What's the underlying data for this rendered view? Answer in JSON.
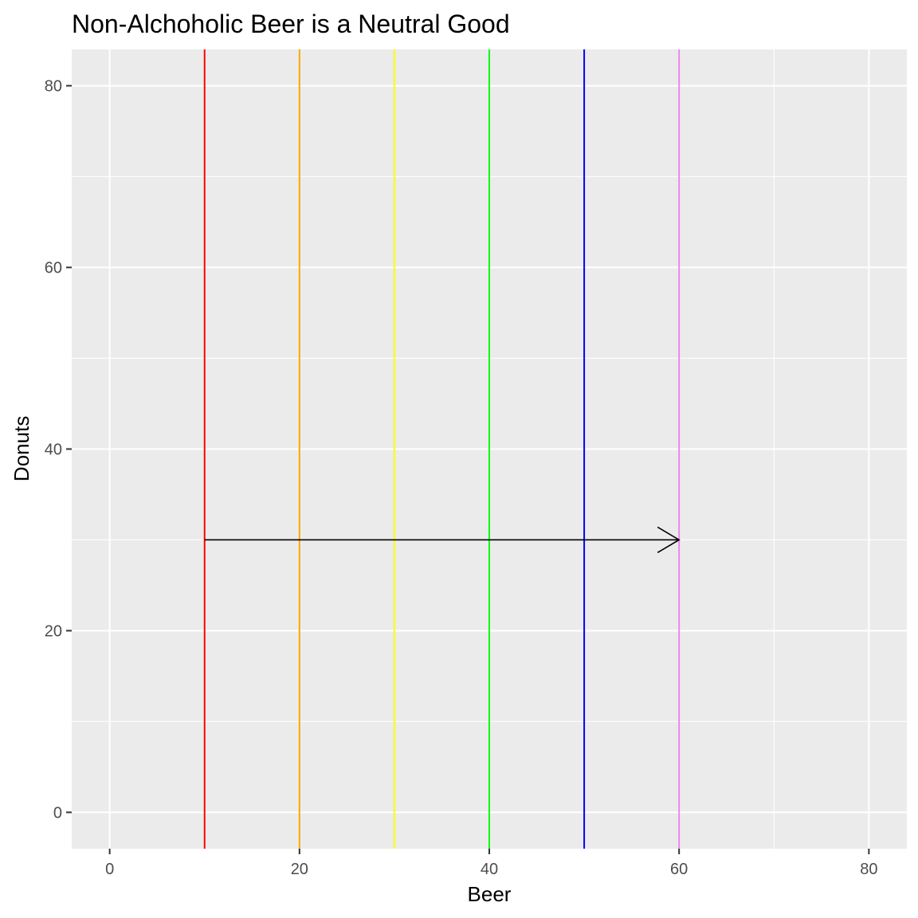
{
  "chart_data": {
    "type": "line",
    "title": "Non-Alchoholic Beer is a Neutral Good",
    "xlabel": "Beer",
    "ylabel": "Donuts",
    "xlim": [
      -4,
      84
    ],
    "ylim": [
      -4,
      84
    ],
    "x_ticks": [
      0,
      20,
      40,
      60,
      80
    ],
    "y_ticks": [
      0,
      20,
      40,
      60,
      80
    ],
    "x_minor": [
      10,
      30,
      50,
      70
    ],
    "y_minor": [
      10,
      30,
      50,
      70
    ],
    "grid": true,
    "panel_background": "#ebebeb",
    "vlines": [
      {
        "x": 10,
        "color": "#ff0000"
      },
      {
        "x": 20,
        "color": "#ffa500"
      },
      {
        "x": 30,
        "color": "#ffff00"
      },
      {
        "x": 40,
        "color": "#00ff00"
      },
      {
        "x": 50,
        "color": "#0000ff"
      },
      {
        "x": 60,
        "color": "#ee82ee"
      }
    ],
    "arrow": {
      "x": 10,
      "y": 30,
      "xend": 60,
      "yend": 30,
      "color": "#000000"
    }
  }
}
